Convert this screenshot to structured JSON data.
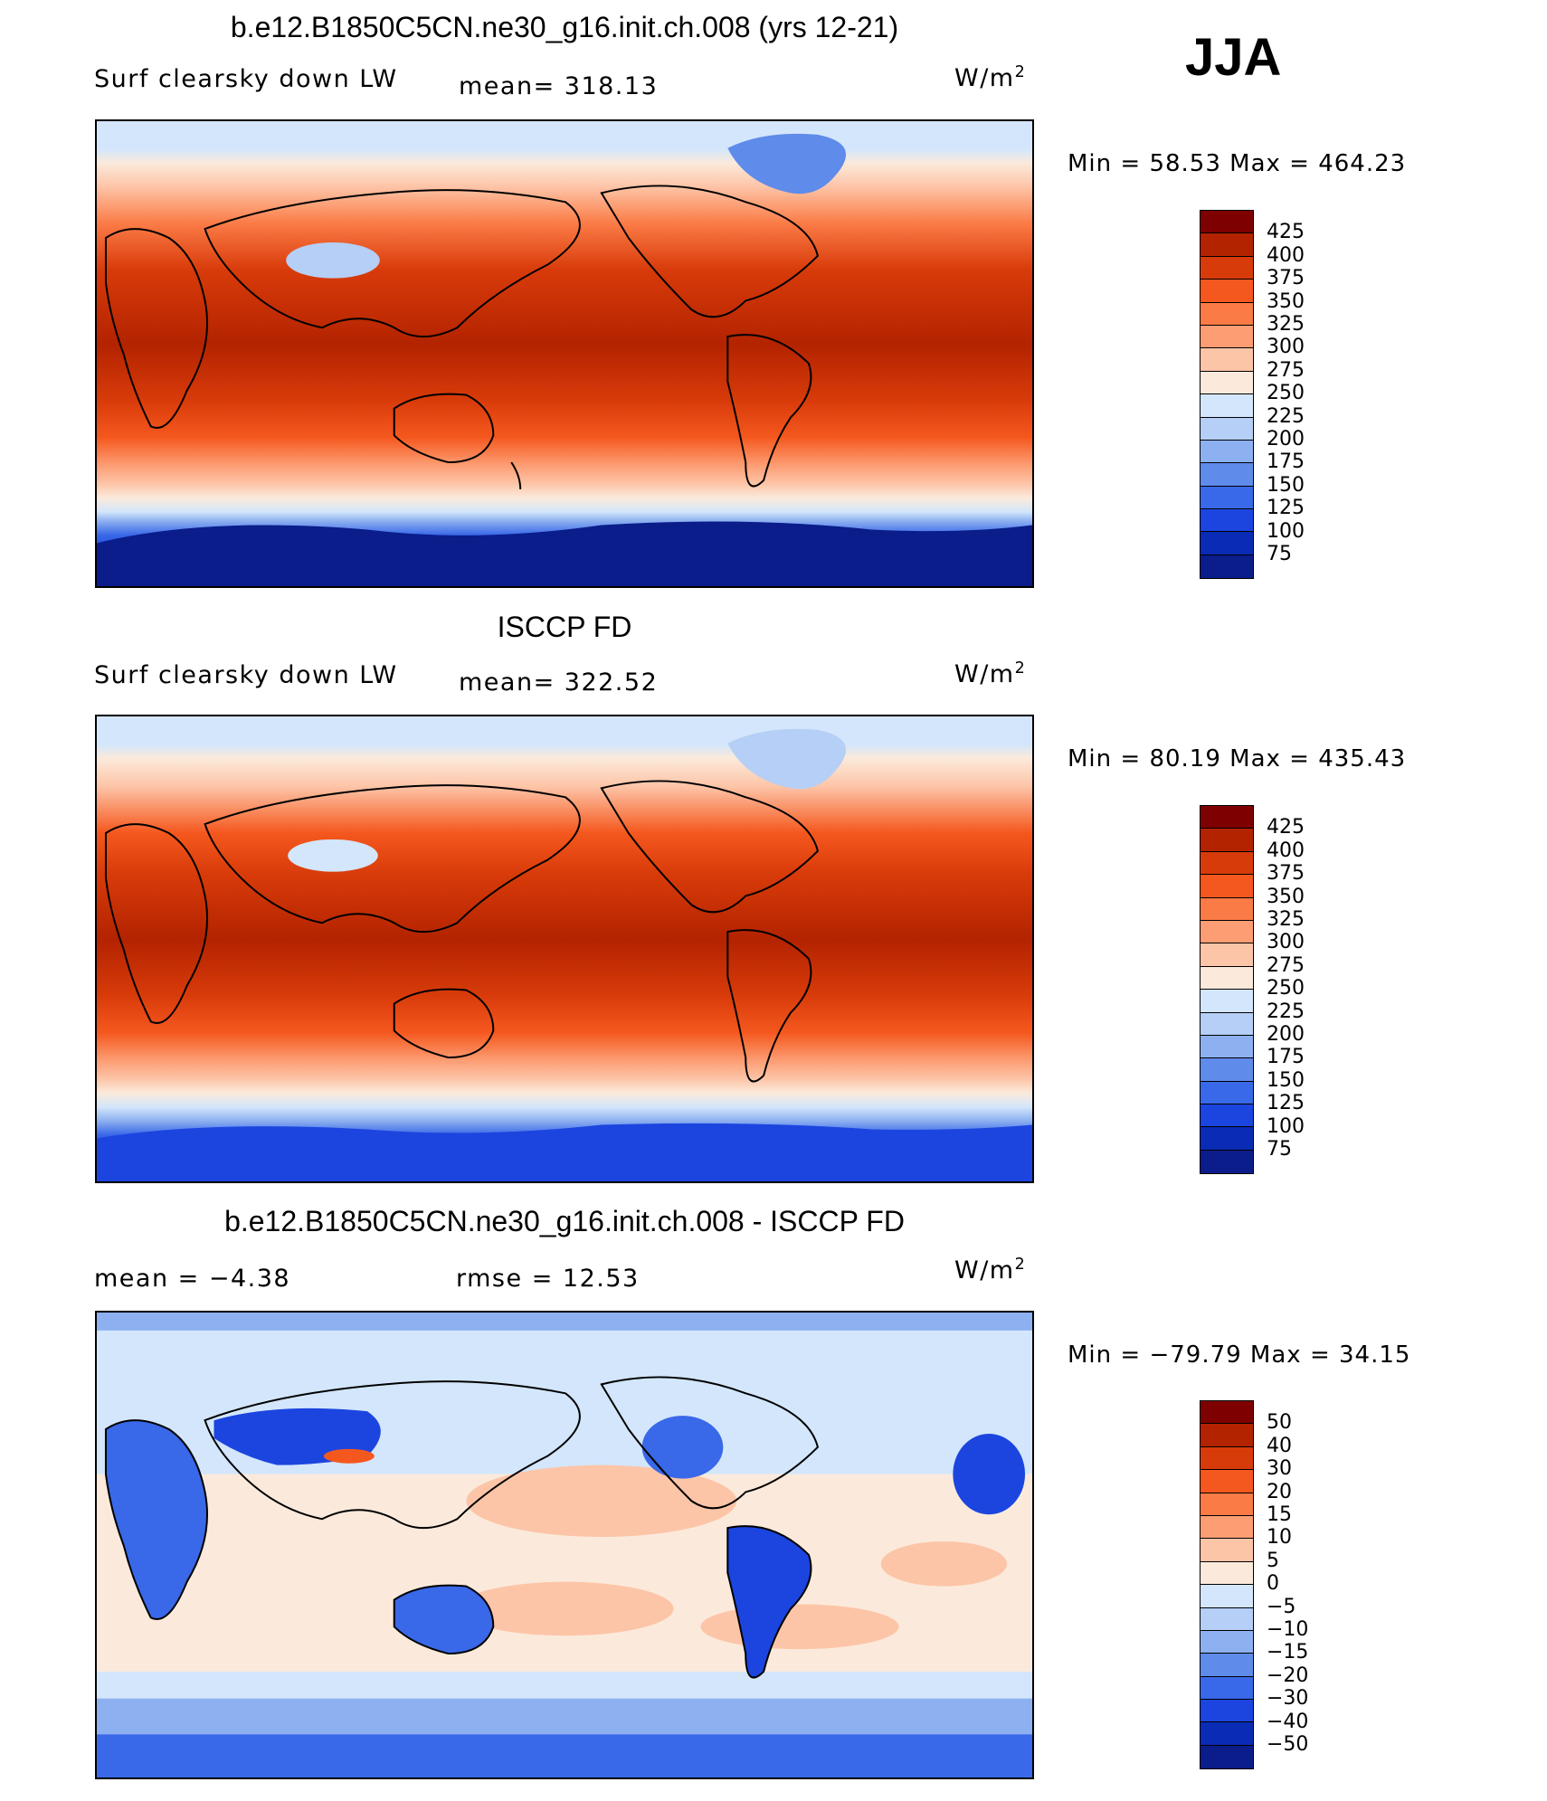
{
  "season": "JJA",
  "units_base": "W/m",
  "units_exp": "2",
  "panels": [
    {
      "title": "b.e12.B1850C5CN.ne30_g16.init.ch.008 (yrs 12-21)",
      "left_label": "Surf clearsky down LW",
      "mid_label": "mean= 318.13",
      "minmax": "Min =   58.53 Max = 464.23",
      "colorbar_labels": [
        "425",
        "400",
        "375",
        "350",
        "325",
        "300",
        "275",
        "250",
        "225",
        "200",
        "175",
        "150",
        "125",
        "100",
        "75"
      ]
    },
    {
      "title": "ISCCP FD",
      "left_label": "Surf clearsky down LW",
      "mid_label": "mean= 322.52",
      "minmax": "Min =   80.19 Max = 435.43",
      "colorbar_labels": [
        "425",
        "400",
        "375",
        "350",
        "325",
        "300",
        "275",
        "250",
        "225",
        "200",
        "175",
        "150",
        "125",
        "100",
        "75"
      ]
    },
    {
      "title": "b.e12.B1850C5CN.ne30_g16.init.ch.008 - ISCCP FD",
      "left_label": "mean =   −4.38",
      "mid_label": "rmse =   12.53",
      "minmax": "Min = −79.79 Max =   34.15",
      "colorbar_labels": [
        "50",
        "40",
        "30",
        "20",
        "15",
        "10",
        "5",
        "0",
        "−5",
        "−10",
        "−15",
        "−20",
        "−30",
        "−40",
        "−50"
      ]
    }
  ],
  "colorbar_colors": [
    "#7f0000",
    "#b32300",
    "#d83b0a",
    "#f5581e",
    "#fb7b46",
    "#fc9d73",
    "#fdc5a8",
    "#fbeadb",
    "#d3e6fb",
    "#b5cff6",
    "#8db0f0",
    "#5f8bea",
    "#3968e8",
    "#1c45df",
    "#0a2bb5",
    "#0a1d8a"
  ],
  "colors": {
    "diff_land_blue": "#2c5de6",
    "diff_bg_pale": "#fbe6d6"
  }
}
